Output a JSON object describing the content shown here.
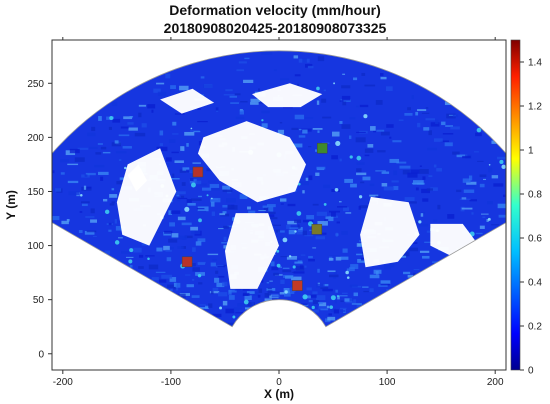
{
  "chart_data": {
    "type": "heatmap",
    "title_line1": "Deformation velocity (mm/hour)",
    "title_line2": "20180908020425-20180908073325",
    "xlabel": "X (m)",
    "ylabel": "Y (m)",
    "xlim": [
      -210,
      210
    ],
    "ylim": [
      -15,
      290
    ],
    "xticks": [
      -200,
      -100,
      0,
      100,
      200
    ],
    "xtick_labels": [
      "-200",
      "-100",
      "0",
      "100",
      "200"
    ],
    "yticks": [
      0,
      50,
      100,
      150,
      200,
      250
    ],
    "ytick_labels": [
      "0",
      "50",
      "100",
      "150",
      "200",
      "250"
    ],
    "colorbar": {
      "min": 0,
      "max": 1.5,
      "ticks": [
        0,
        0.2,
        0.4,
        0.6,
        0.8,
        1,
        1.2,
        1.4
      ],
      "tick_labels": [
        "0",
        "0.2",
        "0.4",
        "0.6",
        "0.8",
        "1",
        "1.2",
        "1.4"
      ],
      "colormap": "jet"
    },
    "scan_area": {
      "shape": "annular sector",
      "outer_radius": 280,
      "inner_radius": 50,
      "angle_from_deg": 30,
      "angle_to_deg": 150,
      "center": [
        0,
        0
      ]
    },
    "markers": [
      {
        "x": -75,
        "y": 168,
        "color": "#b8332a"
      },
      {
        "x": 40,
        "y": 190,
        "color": "#3f8a2c"
      },
      {
        "x": 35,
        "y": 115,
        "color": "#7a7a2a"
      },
      {
        "x": -85,
        "y": 85,
        "color": "#b8332a"
      },
      {
        "x": 17,
        "y": 63,
        "color": "#c23a25"
      }
    ],
    "background_color_value": 0.05,
    "colors": {
      "low": "#1a2ad6",
      "mid": "#2d7de8",
      "high": "#7a0d0d",
      "void": "#ffffff"
    }
  }
}
